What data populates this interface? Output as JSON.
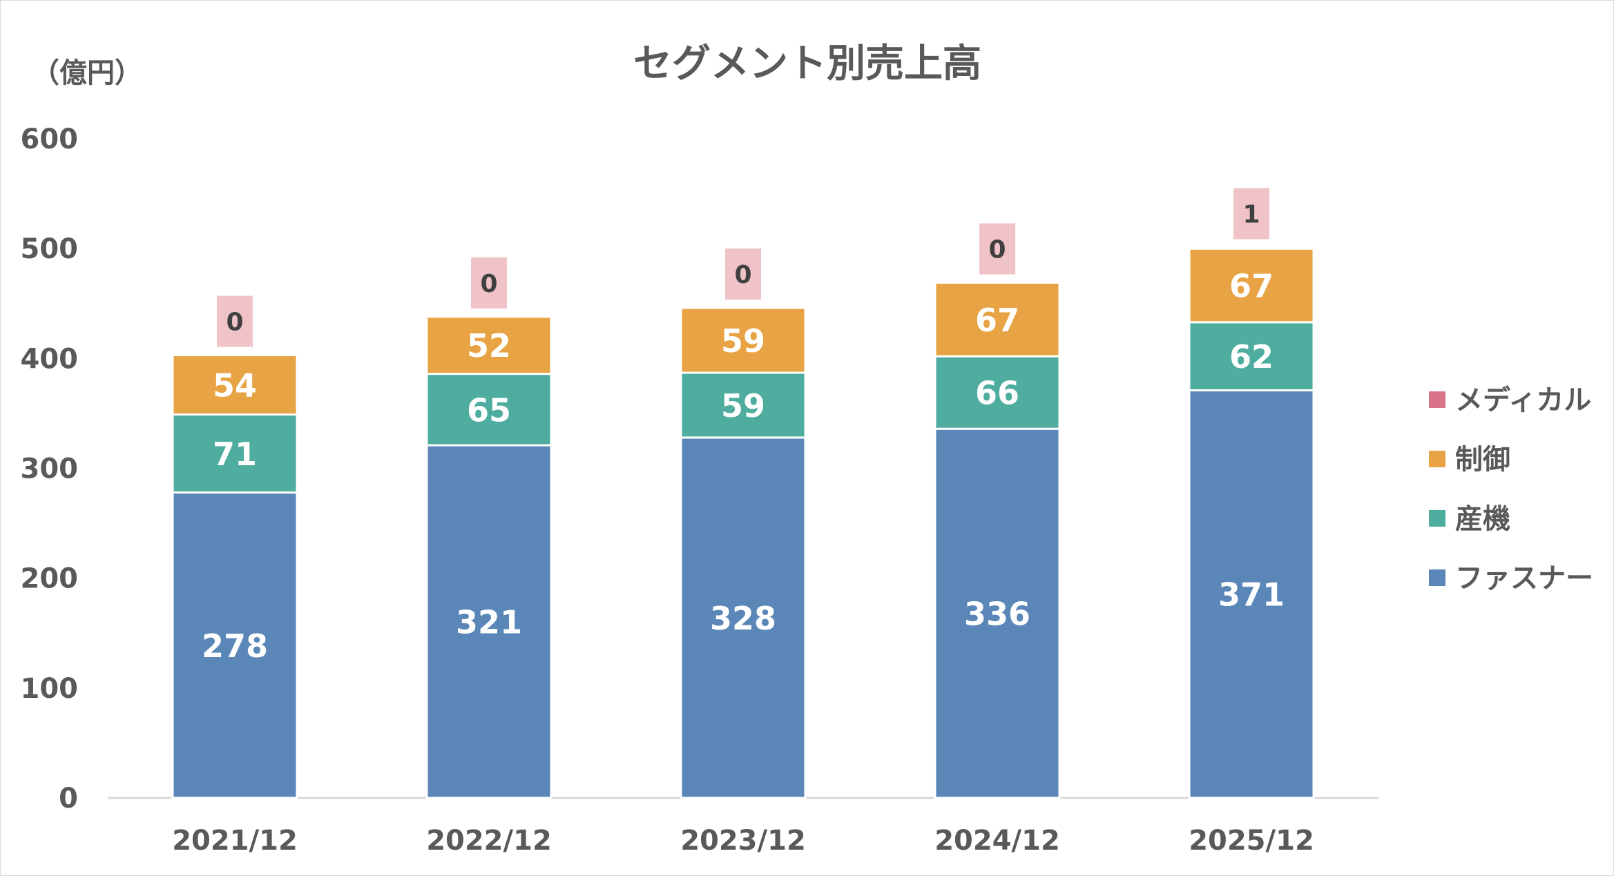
{
  "chart_data": {
    "type": "bar",
    "stacked": true,
    "title": "セグメント別売上高",
    "unit_label": "（億円）",
    "categories": [
      "2021/12",
      "2022/12",
      "2023/12",
      "2024/12",
      "2025/12"
    ],
    "ylim": [
      0,
      600
    ],
    "yticks": [
      0,
      100,
      200,
      300,
      400,
      500,
      600
    ],
    "grid": false,
    "legend_position": "right",
    "series": [
      {
        "name": "ファスナー",
        "color": "#5b87b8",
        "values": [
          278,
          321,
          328,
          336,
          371
        ]
      },
      {
        "name": "産機",
        "color": "#4ead9f",
        "values": [
          71,
          65,
          59,
          66,
          62
        ]
      },
      {
        "name": "制御",
        "color": "#e8a444",
        "values": [
          54,
          52,
          59,
          67,
          67
        ]
      },
      {
        "name": "メディカル",
        "color": "#d8738a",
        "label_bg": "#efc3c7",
        "values": [
          0,
          0,
          0,
          0,
          1
        ]
      }
    ]
  }
}
